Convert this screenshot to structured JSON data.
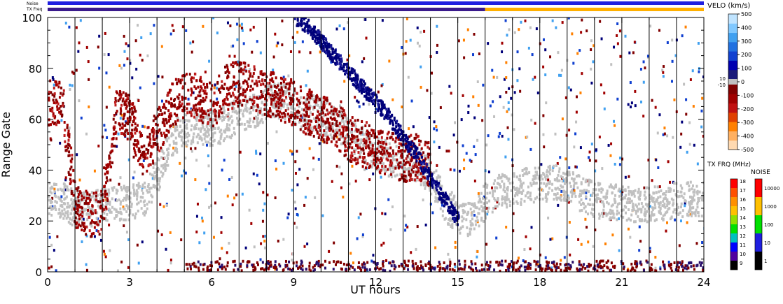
{
  "chart_data": {
    "type": "heatmap",
    "xlabel": "UT hours",
    "ylabel": "Range Gate",
    "xlim": [
      0,
      24
    ],
    "ylim": [
      0,
      100
    ],
    "x_ticks": [
      0,
      3,
      6,
      9,
      12,
      15,
      18,
      21,
      24
    ],
    "y_ticks": [
      0,
      20,
      40,
      60,
      80,
      100
    ],
    "scan_lines_ut": [
      1,
      2,
      3,
      4,
      5,
      6,
      7,
      8,
      9,
      10,
      11,
      12,
      13,
      14,
      15,
      16,
      17,
      18,
      19,
      20,
      21,
      22,
      23
    ],
    "grid": false,
    "top_strips": [
      {
        "label": "Noise",
        "segments": [
          {
            "from": 0,
            "to": 24,
            "color": "#1f1fe0"
          }
        ]
      },
      {
        "label": "TX Freq",
        "segments": [
          {
            "from": 0,
            "to": 16,
            "color": "#3a1a8c"
          },
          {
            "from": 16,
            "to": 24,
            "color": "#ffb000"
          }
        ]
      }
    ],
    "velocity_colorbar": {
      "title": "VELO (km/s)",
      "ticks": [
        "500",
        "400",
        "300",
        "200",
        "100",
        "0",
        "-100",
        "-200",
        "-300",
        "-400",
        "-500"
      ],
      "ground_scatter_labels": [
        "10",
        "-10"
      ],
      "colors": [
        "#ffd9b0",
        "#ffb060",
        "#ff8000",
        "#e04000",
        "#c01010",
        "#a00000",
        "#800000",
        "#1a1a7a",
        "#0000b0",
        "#1040d0",
        "#2070e0",
        "#40a0f0",
        "#80c8ff",
        "#c0e4ff"
      ]
    },
    "frequency_colorbar": {
      "title": "TX FRQ (MHz)",
      "ticks": [
        "18",
        "17",
        "16",
        "15",
        "14",
        "13",
        "12",
        "11",
        "10",
        "9"
      ],
      "colors": [
        "#ff0000",
        "#ff5000",
        "#ff9000",
        "#ffc000",
        "#90e000",
        "#00e000",
        "#00c0c0",
        "#0000ff",
        "#5000a0",
        "#000000"
      ]
    },
    "noise_colorbar": {
      "title": "NOISE",
      "ticks": [
        "10000",
        "1000",
        "100",
        "10",
        "1"
      ],
      "colors": [
        "#ff0000",
        "#ffc000",
        "#00e000",
        "#1f1fe0",
        "#000000"
      ]
    },
    "series": [
      {
        "type": "ground_scatter",
        "color": "#c0c0c0",
        "x": [
          0,
          0.5,
          1,
          1.5,
          2,
          2.5,
          3,
          3.5,
          4,
          4.5,
          5,
          5.5,
          6,
          6.5,
          7,
          7.5,
          8,
          8.5,
          9,
          9.5,
          10,
          10.5,
          11,
          11.5,
          12,
          12.5,
          13,
          13.5,
          14,
          14.5,
          15,
          15.5,
          16,
          16.5,
          17,
          17.5,
          18,
          18.5,
          19,
          19.5,
          20,
          20.5,
          21,
          21.5,
          22,
          22.5,
          23,
          23.5,
          24
        ],
        "y": [
          28,
          28,
          24,
          24,
          26,
          27,
          27,
          28,
          38,
          52,
          56,
          57,
          56,
          58,
          62,
          63,
          66,
          67,
          64,
          63,
          61,
          58,
          53,
          50,
          46,
          44,
          43,
          42,
          37,
          26,
          22,
          20,
          28,
          31,
          32,
          34,
          34,
          35,
          34,
          30,
          28,
          27,
          27,
          26,
          26,
          27,
          28,
          28,
          28
        ]
      },
      {
        "type": "negative_velocity",
        "color": "#a00000",
        "x": [
          0,
          0.5,
          1,
          1.5,
          2,
          2.5,
          3,
          3.5,
          4,
          4.5,
          5,
          5.5,
          6,
          6.5,
          7,
          7.5,
          8,
          8.5,
          9,
          9.5,
          10,
          10.5,
          11,
          11.5,
          12,
          12.5,
          13,
          13.5,
          14
        ],
        "y": [
          66,
          67,
          25,
          22,
          24,
          64,
          60,
          45,
          55,
          65,
          70,
          68,
          65,
          72,
          74,
          72,
          70,
          68,
          66,
          62,
          60,
          58,
          52,
          50,
          48,
          46,
          44,
          45,
          42
        ]
      },
      {
        "type": "positive_velocity",
        "color": "#00007a",
        "x": [
          9,
          9.5,
          10,
          10.5,
          11,
          11.5,
          12,
          12.5,
          13,
          13.5,
          14,
          14.5,
          15
        ],
        "y": [
          100,
          96,
          90,
          84,
          78,
          72,
          66,
          60,
          52,
          45,
          36,
          28,
          20
        ]
      }
    ]
  }
}
